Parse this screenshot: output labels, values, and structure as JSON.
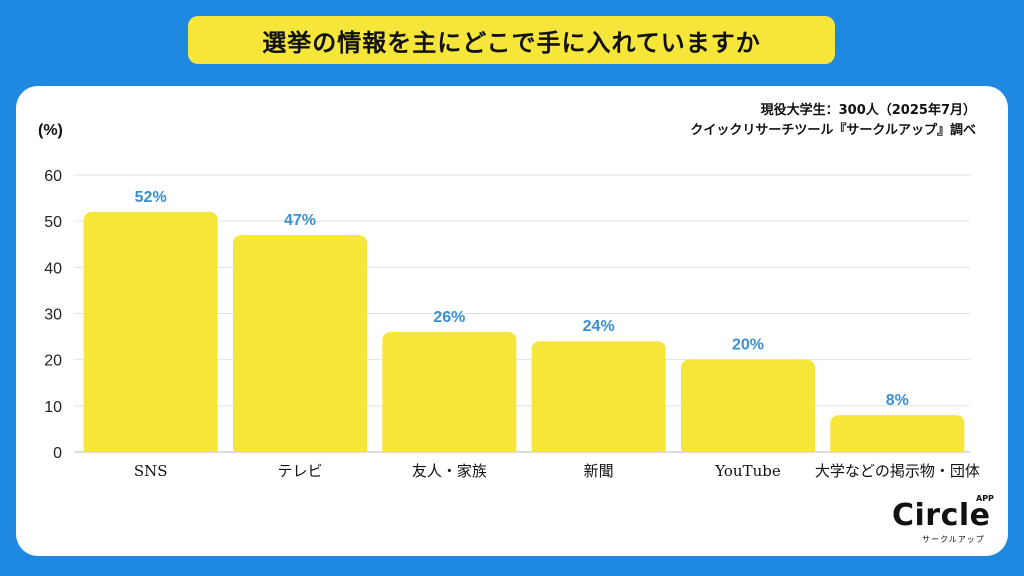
{
  "header": {
    "title": "選挙の情報を主にどこで手に入れていますか"
  },
  "source": {
    "line1": "現役大学生：300人（2025年7月）",
    "line2": "クイックリサーチツール『サークルアップ』調べ"
  },
  "logo": {
    "word": "Circle",
    "app": "APP",
    "kana": "サークルアップ"
  },
  "chart_data": {
    "type": "bar",
    "ylabel": "(%)",
    "ylim": [
      0,
      60
    ],
    "yticks": [
      0,
      10,
      20,
      30,
      40,
      50,
      60
    ],
    "grid": true,
    "categories": [
      "SNS",
      "テレビ",
      "友人・家族",
      "新聞",
      "YouTube",
      "大学などの掲示物・団体"
    ],
    "values": [
      52,
      47,
      26,
      24,
      20,
      8
    ],
    "data_labels": [
      "52%",
      "47%",
      "26%",
      "24%",
      "20%",
      "8%"
    ],
    "bar_color": "#f7e63a",
    "label_color": "#3a8fd0"
  }
}
